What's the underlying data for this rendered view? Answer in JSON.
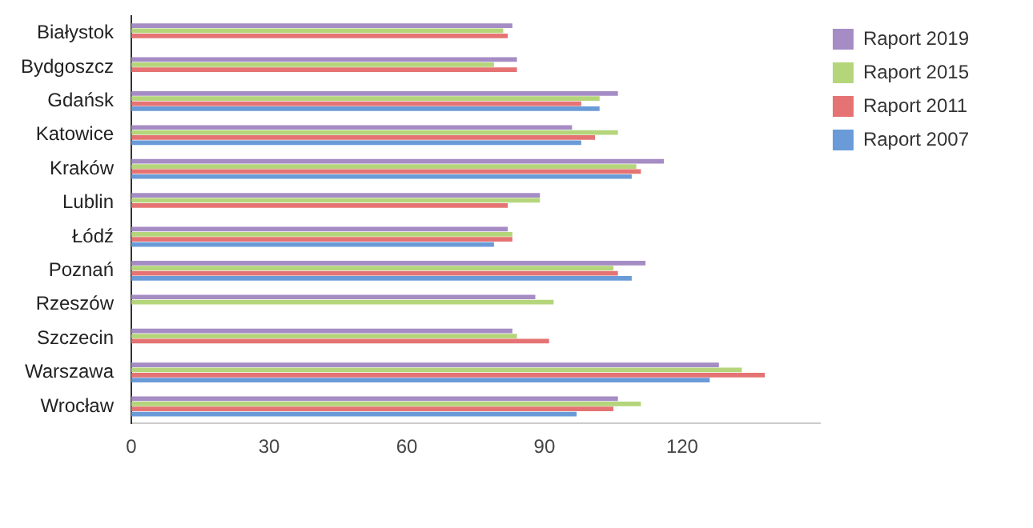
{
  "chart_data": {
    "type": "bar",
    "orientation": "horizontal",
    "categories": [
      "Białystok",
      "Bydgoszcz",
      "Gdańsk",
      "Katowice",
      "Kraków",
      "Lublin",
      "Łódź",
      "Poznań",
      "Rzeszów",
      "Szczecin",
      "Warszawa",
      "Wrocław"
    ],
    "series": [
      {
        "name": "Raport 2019",
        "color": "#a58cc4",
        "values": [
          83,
          84,
          106,
          96,
          116,
          89,
          82,
          112,
          88,
          83,
          128,
          106
        ]
      },
      {
        "name": "Raport 2015",
        "color": "#b5d57b",
        "values": [
          81,
          79,
          102,
          106,
          110,
          89,
          83,
          105,
          92,
          84,
          133,
          111
        ]
      },
      {
        "name": "Raport 2011",
        "color": "#e57373",
        "values": [
          82,
          84,
          98,
          101,
          111,
          82,
          83,
          106,
          null,
          91,
          138,
          105
        ]
      },
      {
        "name": "Raport 2007",
        "color": "#6a9bd8",
        "values": [
          null,
          null,
          102,
          98,
          109,
          null,
          79,
          109,
          null,
          null,
          126,
          97
        ]
      }
    ],
    "xlim": [
      0,
      150
    ],
    "xticks": [
      0,
      30,
      60,
      90,
      120
    ],
    "grid": false,
    "legend": "top right"
  }
}
